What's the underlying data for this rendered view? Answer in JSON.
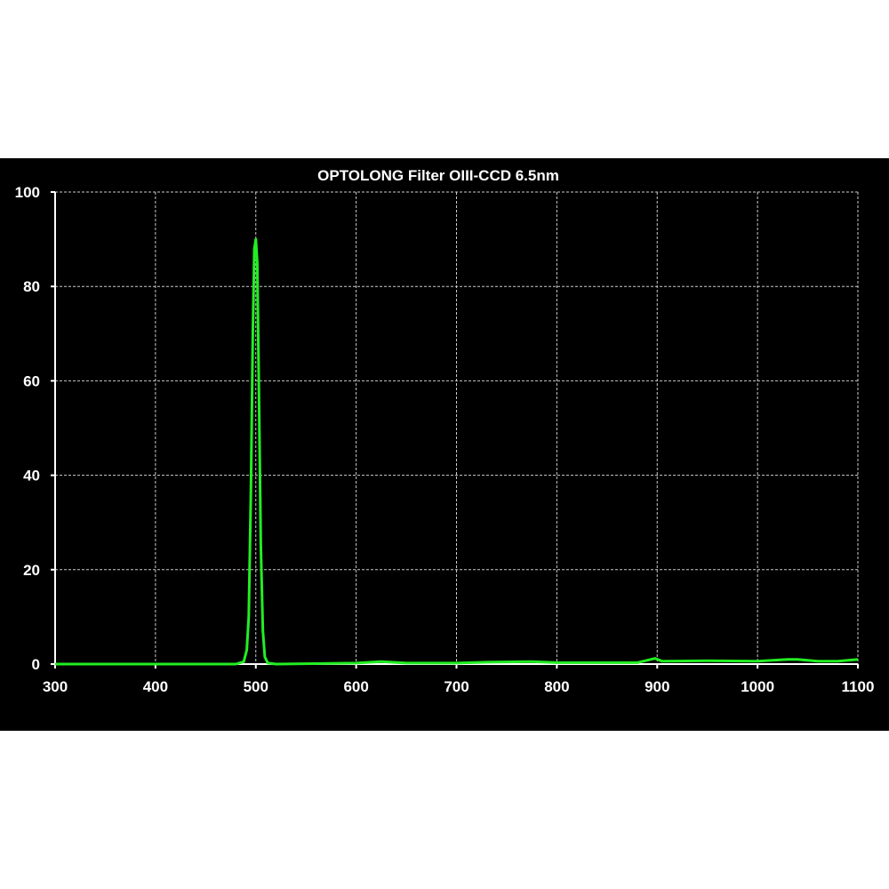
{
  "chart_data": {
    "type": "line",
    "title": "OPTOLONG Filter OIII-CCD 6.5nm",
    "xlabel": "",
    "ylabel": "",
    "xlim": [
      300,
      1100
    ],
    "ylim": [
      0,
      100
    ],
    "xticks": [
      300,
      400,
      500,
      600,
      700,
      800,
      900,
      1000,
      1100
    ],
    "yticks": [
      0,
      20,
      40,
      60,
      80,
      100
    ],
    "grid": true,
    "background": "#000000",
    "line_color": "#22ee22",
    "series": [
      {
        "x": [
          300,
          400,
          480,
          488,
          491,
          493,
          495,
          497,
          498.5,
          500,
          501.5,
          503,
          505,
          507,
          509,
          512,
          520,
          600,
          625,
          650,
          700,
          730,
          775,
          800,
          880,
          898,
          905,
          950,
          1000,
          1030,
          1040,
          1060,
          1080,
          1100
        ],
        "y": [
          0,
          0,
          0,
          0.5,
          3,
          10,
          35,
          70,
          88,
          90,
          85,
          60,
          25,
          7,
          1.5,
          0.2,
          0,
          0.2,
          0.5,
          0.2,
          0.2,
          0.4,
          0.5,
          0.3,
          0.3,
          1.2,
          0.6,
          0.7,
          0.6,
          1.0,
          1.0,
          0.6,
          0.6,
          1.0
        ]
      }
    ]
  }
}
